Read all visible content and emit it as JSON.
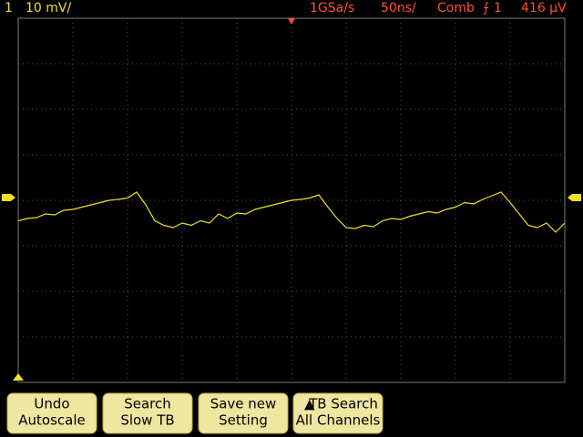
{
  "header": {
    "channel": "1",
    "scale": "10 mV/",
    "sample_rate": "1GSa/s",
    "timebase": "50ns/",
    "trigger_mode": "Comb",
    "trigger_source": "1",
    "trigger_level": "416 µV"
  },
  "trace": {
    "values": [
      -4.5,
      -4,
      -3.8,
      -3,
      -3.2,
      -2.2,
      -2,
      -1.5,
      -1,
      -0.5,
      0,
      0.2,
      0.5,
      1.8,
      -1,
      -4.5,
      -5.5,
      -6,
      -5,
      -5.5,
      -4.5,
      -5,
      -3,
      -4,
      -2.8,
      -3,
      -2,
      -1.5,
      -1,
      -0.5,
      0,
      0.2,
      0.5,
      1.2,
      -1.5,
      -4,
      -6,
      -6.2,
      -5.5,
      -5.8,
      -4.5,
      -4,
      -4.2,
      -3.5,
      -3,
      -2.5,
      -2.8,
      -2,
      -1.5,
      -0.5,
      -0.8,
      0.2,
      1,
      1.8,
      -0.5,
      -3,
      -5.5,
      -6,
      -5,
      -7,
      -5
    ]
  },
  "softkeys": [
    {
      "line1": "Undo",
      "line2": "Autoscale"
    },
    {
      "line1": "Search",
      "line2": "Slow TB"
    },
    {
      "line1": "Save new",
      "line2": "Setting"
    },
    {
      "line1": "TB Search",
      "line2": "All Channels"
    }
  ]
}
